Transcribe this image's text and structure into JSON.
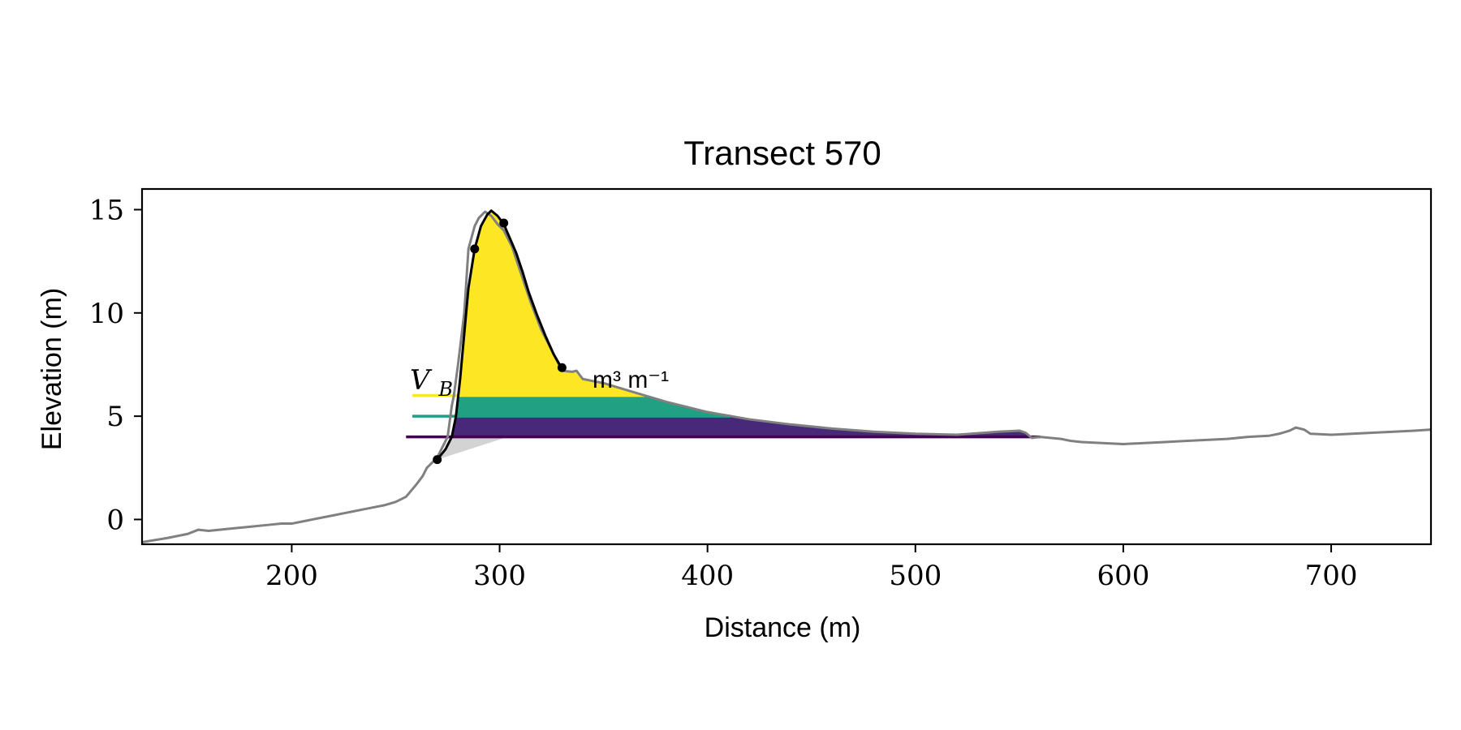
{
  "chart_data": {
    "type": "area",
    "title": "Transect 570",
    "xlabel": "Distance (m)",
    "ylabel": "Elevation (m)",
    "xlim": [
      128,
      748
    ],
    "ylim": [
      -1.2,
      16
    ],
    "x_ticks": [
      200,
      300,
      400,
      500,
      600,
      700
    ],
    "y_ticks": [
      0,
      5,
      10,
      15
    ],
    "grid": false,
    "annotation": {
      "variable": "V",
      "subscript": "B",
      "unit_text": "m³ m⁻¹"
    },
    "colors": {
      "profile": "#808080",
      "dune_outline": "#000000",
      "fill_top": "#fde725",
      "fill_mid": "#21a083",
      "fill_low": "#482878",
      "toe_wedge": "#d3d3d3"
    },
    "levels": [
      {
        "name": "level-6",
        "y": 6.0,
        "x_start": 258,
        "color": "#fde725"
      },
      {
        "name": "level-5",
        "y": 5.0,
        "x_start": 258,
        "color": "#21a083"
      },
      {
        "name": "level-4",
        "y": 4.0,
        "x_start": 255,
        "color": "#440154"
      }
    ],
    "profile": {
      "x": [
        128,
        140,
        150,
        155,
        160,
        170,
        180,
        190,
        195,
        200,
        205,
        210,
        215,
        220,
        225,
        230,
        235,
        240,
        245,
        250,
        255,
        260,
        263,
        265,
        268,
        270,
        272,
        275,
        277,
        278,
        280,
        283,
        285,
        288,
        290,
        293,
        296,
        299,
        302,
        306,
        310,
        315,
        320,
        325,
        330,
        335,
        337,
        340,
        345,
        350,
        360,
        370,
        380,
        400,
        420,
        440,
        460,
        480,
        500,
        520,
        540,
        550,
        553,
        556,
        560,
        570,
        575,
        580,
        590,
        600,
        610,
        620,
        630,
        640,
        650,
        660,
        670,
        675,
        680,
        683,
        687,
        690,
        700,
        710,
        720,
        730,
        740,
        748
      ],
      "y": [
        -1.1,
        -0.9,
        -0.7,
        -0.5,
        -0.55,
        -0.45,
        -0.35,
        -0.25,
        -0.2,
        -0.2,
        -0.1,
        0.0,
        0.1,
        0.2,
        0.3,
        0.4,
        0.5,
        0.6,
        0.7,
        0.85,
        1.1,
        1.7,
        2.1,
        2.5,
        2.8,
        3.0,
        3.4,
        4.0,
        5.5,
        6.0,
        7.5,
        10.0,
        13.1,
        14.2,
        14.6,
        14.9,
        14.7,
        14.3,
        14.0,
        13.2,
        12.0,
        10.5,
        9.2,
        8.2,
        7.2,
        7.15,
        7.2,
        6.8,
        6.7,
        6.6,
        6.3,
        6.0,
        5.7,
        5.2,
        4.85,
        4.6,
        4.4,
        4.25,
        4.15,
        4.1,
        4.25,
        4.3,
        4.2,
        3.95,
        4.0,
        3.9,
        3.8,
        3.75,
        3.7,
        3.65,
        3.7,
        3.75,
        3.8,
        3.85,
        3.9,
        4.0,
        4.05,
        4.15,
        4.3,
        4.45,
        4.35,
        4.15,
        4.1,
        4.15,
        4.2,
        4.25,
        4.3,
        4.35
      ]
    },
    "dune_outline": {
      "x": [
        270,
        274,
        277,
        279,
        281,
        283,
        285,
        288,
        291,
        294,
        296,
        299,
        302,
        305,
        308,
        311,
        314,
        318,
        322,
        326,
        330
      ],
      "y": [
        2.9,
        3.4,
        4.0,
        5.0,
        6.8,
        9.0,
        11.2,
        13.1,
        14.2,
        14.75,
        14.95,
        14.7,
        14.3,
        13.6,
        12.9,
        12.0,
        11.0,
        9.9,
        8.9,
        8.0,
        7.3
      ]
    },
    "key_points": {
      "x": [
        270,
        288,
        302,
        330
      ],
      "y": [
        2.9,
        13.1,
        14.35,
        7.35
      ]
    },
    "toe_wedge": {
      "x": [
        270,
        282,
        286,
        300,
        304
      ],
      "y": [
        2.9,
        2.9,
        3.2,
        3.8,
        4.0
      ]
    }
  }
}
